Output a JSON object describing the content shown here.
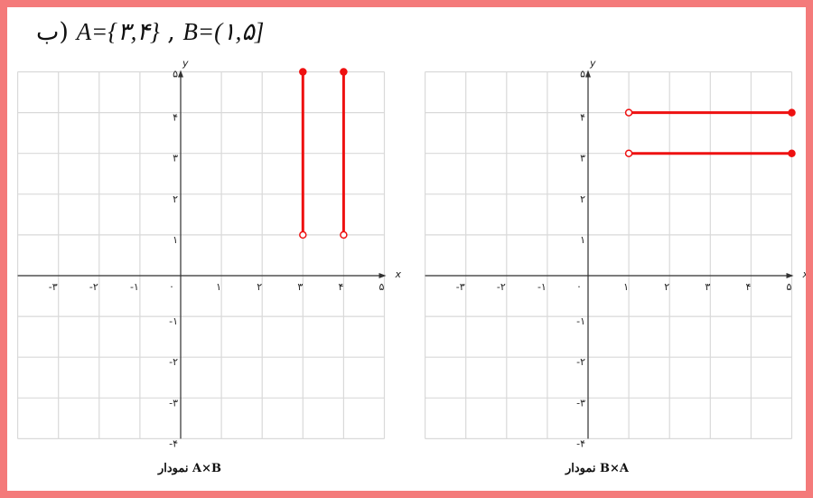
{
  "title": {
    "label": "ب)",
    "a_set": "A={۳,۴}",
    "sep": " , ",
    "b_set": "B=(۱,۵]"
  },
  "colors": {
    "frame": "#f47a7a",
    "series": "#ee1111",
    "grid": "#d9d9d9",
    "axis": "#333333"
  },
  "chart_data": [
    {
      "type": "line",
      "caption": "نمودار A×B",
      "xlabel": "x",
      "ylabel": "y",
      "xlim": [
        -4,
        5
      ],
      "ylim": [
        -4,
        5
      ],
      "grid": true,
      "x_ticks": [
        "-۳",
        "-۲",
        "-۱",
        "۰",
        "۱",
        "۲",
        "۳",
        "۴",
        "۵"
      ],
      "y_ticks": [
        "-۴",
        "-۳",
        "-۲",
        "-۱",
        "۱",
        "۲",
        "۳",
        "۴",
        "۵"
      ],
      "segments": [
        {
          "from": [
            3,
            1
          ],
          "to": [
            3,
            5
          ],
          "from_open": true,
          "to_open": false
        },
        {
          "from": [
            4,
            1
          ],
          "to": [
            4,
            5
          ],
          "from_open": true,
          "to_open": false
        }
      ]
    },
    {
      "type": "line",
      "caption": "نمودار B×A",
      "xlabel": "x",
      "ylabel": "y",
      "xlim": [
        -4,
        5
      ],
      "ylim": [
        -4,
        5
      ],
      "grid": true,
      "x_ticks": [
        "-۳",
        "-۲",
        "-۱",
        "۰",
        "۱",
        "۲",
        "۳",
        "۴",
        "۵"
      ],
      "y_ticks": [
        "-۴",
        "-۳",
        "-۲",
        "-۱",
        "۱",
        "۲",
        "۳",
        "۴",
        "۵"
      ],
      "segments": [
        {
          "from": [
            1,
            4
          ],
          "to": [
            5,
            4
          ],
          "from_open": true,
          "to_open": false
        },
        {
          "from": [
            1,
            3
          ],
          "to": [
            5,
            3
          ],
          "from_open": true,
          "to_open": false
        }
      ]
    }
  ]
}
